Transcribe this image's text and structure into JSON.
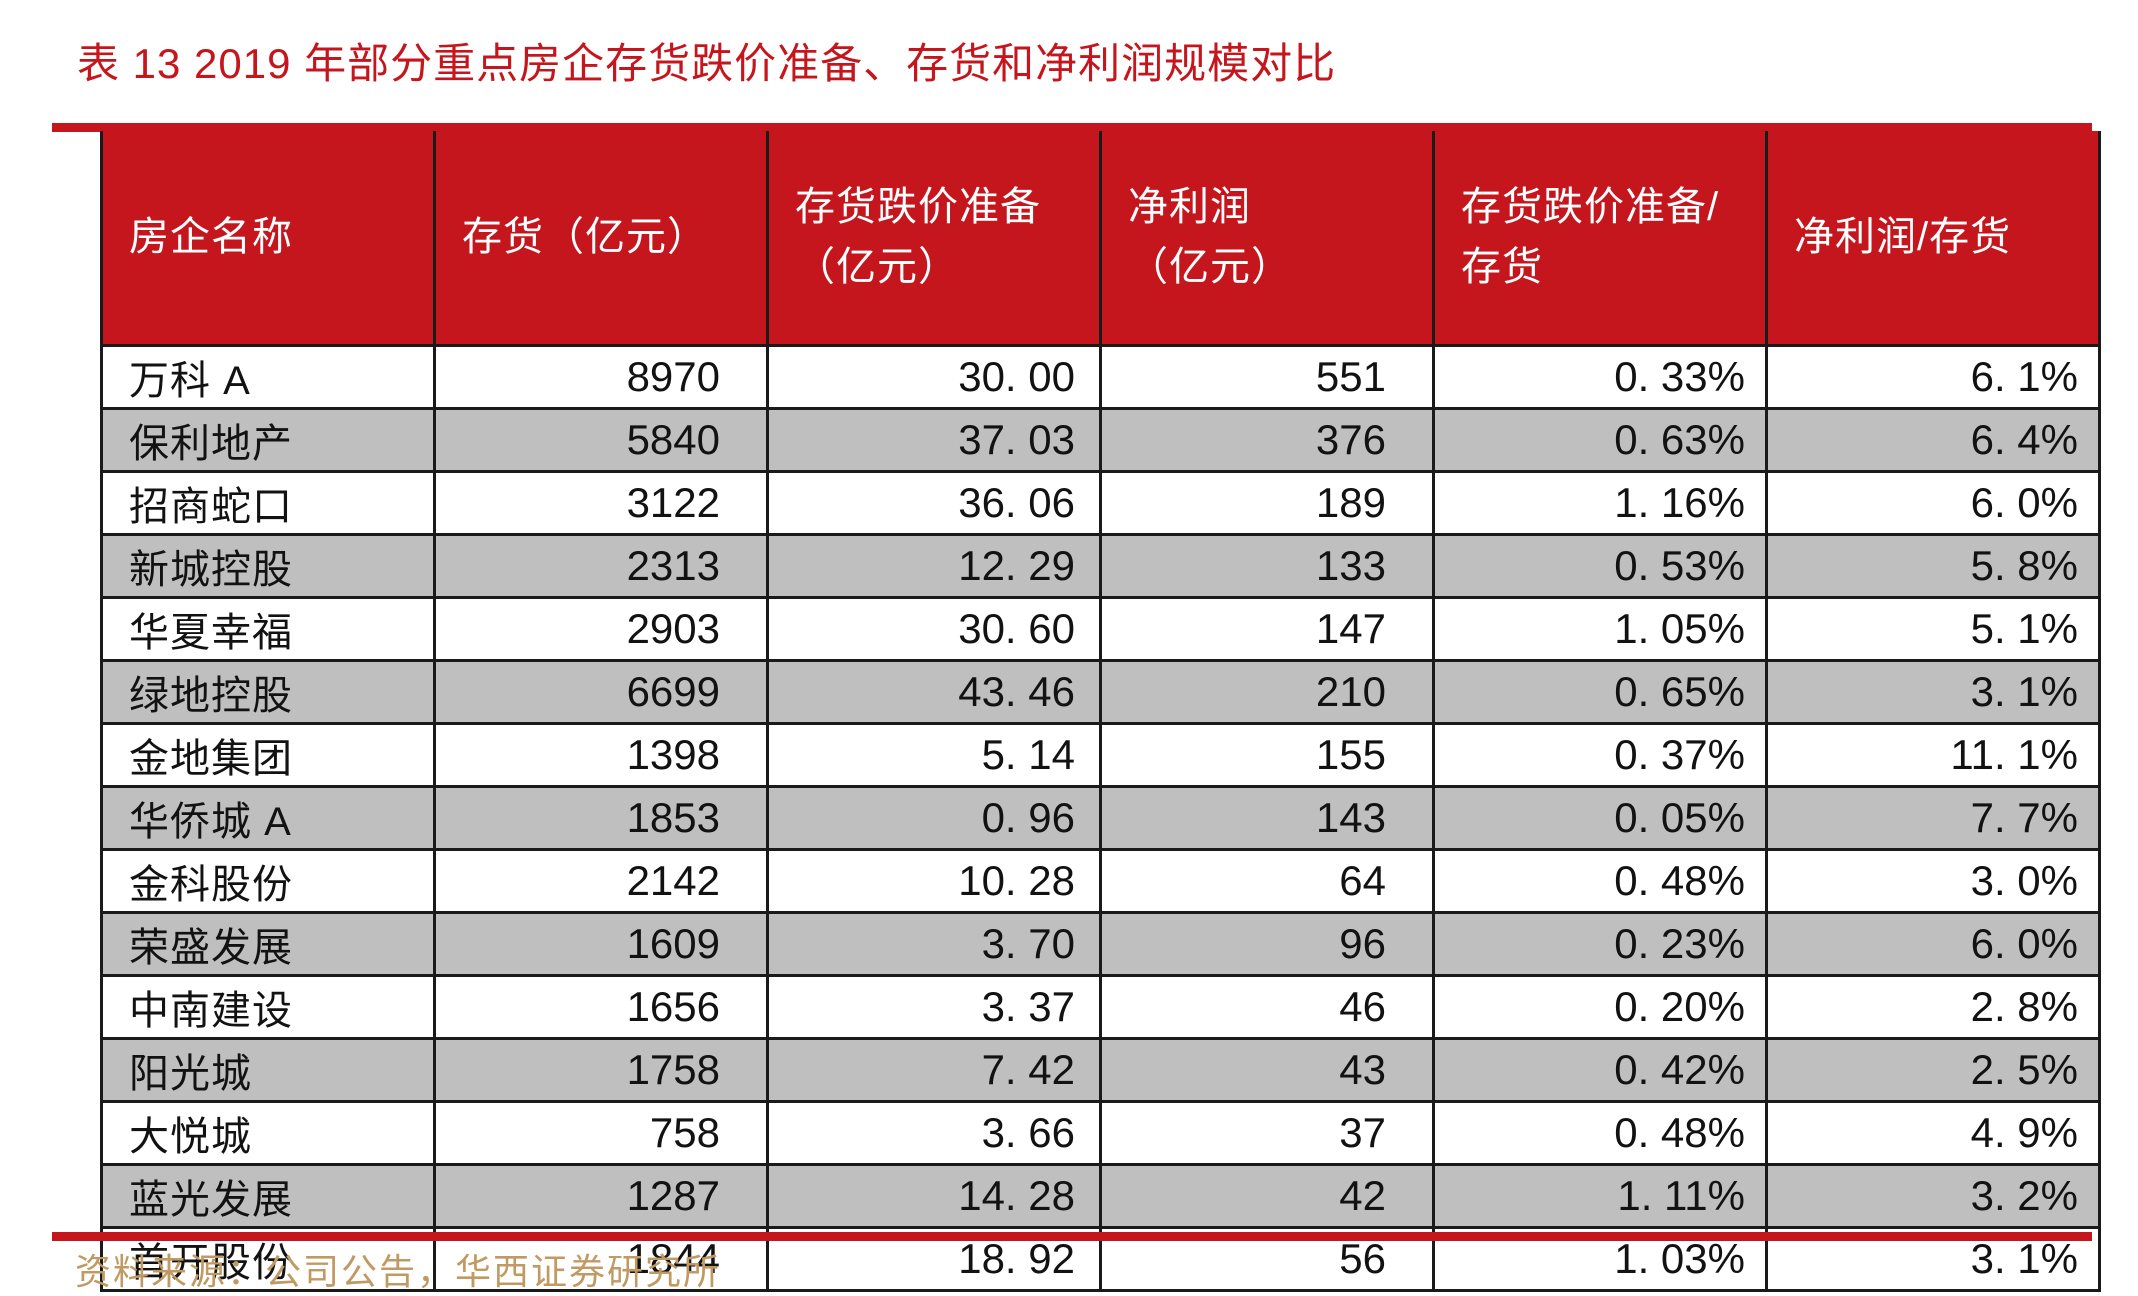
{
  "title": "表 13 2019 年部分重点房企存货跌价准备、存货和净利润规模对比",
  "source": "资料来源：公司公告，华西证券研究所",
  "colors": {
    "accent_red": "#C5161D",
    "header_bg": "#C5161D",
    "row_bg": "#FFFFFF",
    "row_alt_bg": "#BFBFBF",
    "border": "#1A1A1A",
    "header_text": "#FFFFFF",
    "body_text": "#121212",
    "source_gold": "#C19A63"
  },
  "table": {
    "columns": [
      {
        "label": "房企名称",
        "align": "left"
      },
      {
        "label": "存货（亿元）",
        "align": "right"
      },
      {
        "label": "存货跌价准备\n（亿元）",
        "align": "right"
      },
      {
        "label": "净利润\n（亿元）",
        "align": "right"
      },
      {
        "label": "存货跌价准备/\n存货",
        "align": "right"
      },
      {
        "label": "净利润/存货",
        "align": "right"
      }
    ],
    "rows": [
      [
        "万科 A",
        "8970",
        "30. 00",
        "551",
        "0. 33%",
        "6. 1%"
      ],
      [
        "保利地产",
        "5840",
        "37. 03",
        "376",
        "0. 63%",
        "6. 4%"
      ],
      [
        "招商蛇口",
        "3122",
        "36. 06",
        "189",
        "1. 16%",
        "6. 0%"
      ],
      [
        "新城控股",
        "2313",
        "12. 29",
        "133",
        "0. 53%",
        "5. 8%"
      ],
      [
        "华夏幸福",
        "2903",
        "30. 60",
        "147",
        "1. 05%",
        "5. 1%"
      ],
      [
        "绿地控股",
        "6699",
        "43. 46",
        "210",
        "0. 65%",
        "3. 1%"
      ],
      [
        "金地集团",
        "1398",
        "5. 14",
        "155",
        "0. 37%",
        "11. 1%"
      ],
      [
        "华侨城 A",
        "1853",
        "0. 96",
        "143",
        "0. 05%",
        "7. 7%"
      ],
      [
        "金科股份",
        "2142",
        "10. 28",
        "64",
        "0. 48%",
        "3. 0%"
      ],
      [
        "荣盛发展",
        "1609",
        "3. 70",
        "96",
        "0. 23%",
        "6. 0%"
      ],
      [
        "中南建设",
        "1656",
        "3. 37",
        "46",
        "0. 20%",
        "2. 8%"
      ],
      [
        "阳光城",
        "1758",
        "7. 42",
        "43",
        "0. 42%",
        "2. 5%"
      ],
      [
        "大悦城",
        "758",
        "3. 66",
        "37",
        "0. 48%",
        "4. 9%"
      ],
      [
        "蓝光发展",
        "1287",
        "14. 28",
        "42",
        "1. 11%",
        "3. 2%"
      ],
      [
        "首开股份",
        "1844",
        "18. 92",
        "56",
        "1. 03%",
        "3. 1%"
      ]
    ]
  },
  "chart_data": {
    "type": "table",
    "title": "表 13 2019 年部分重点房企存货跌价准备、存货和净利润规模对比",
    "columns": [
      "房企名称",
      "存货（亿元）",
      "存货跌价准备（亿元）",
      "净利润（亿元）",
      "存货跌价准备/存货",
      "净利润/存货"
    ],
    "rows": [
      [
        "万科 A",
        8970,
        30.0,
        551,
        "0.33%",
        "6.1%"
      ],
      [
        "保利地产",
        5840,
        37.03,
        376,
        "0.63%",
        "6.4%"
      ],
      [
        "招商蛇口",
        3122,
        36.06,
        189,
        "1.16%",
        "6.0%"
      ],
      [
        "新城控股",
        2313,
        12.29,
        133,
        "0.53%",
        "5.8%"
      ],
      [
        "华夏幸福",
        2903,
        30.6,
        147,
        "1.05%",
        "5.1%"
      ],
      [
        "绿地控股",
        6699,
        43.46,
        210,
        "0.65%",
        "3.1%"
      ],
      [
        "金地集团",
        1398,
        5.14,
        155,
        "0.37%",
        "11.1%"
      ],
      [
        "华侨城 A",
        1853,
        0.96,
        143,
        "0.05%",
        "7.7%"
      ],
      [
        "金科股份",
        2142,
        10.28,
        64,
        "0.48%",
        "3.0%"
      ],
      [
        "荣盛发展",
        1609,
        3.7,
        96,
        "0.23%",
        "6.0%"
      ],
      [
        "中南建设",
        1656,
        3.37,
        46,
        "0.20%",
        "2.8%"
      ],
      [
        "阳光城",
        1758,
        7.42,
        43,
        "0.42%",
        "2.5%"
      ],
      [
        "大悦城",
        758,
        3.66,
        37,
        "0.48%",
        "4.9%"
      ],
      [
        "蓝光发展",
        1287,
        14.28,
        42,
        "1.11%",
        "3.2%"
      ],
      [
        "首开股份",
        1844,
        18.92,
        56,
        "1.03%",
        "3.1%"
      ]
    ]
  }
}
